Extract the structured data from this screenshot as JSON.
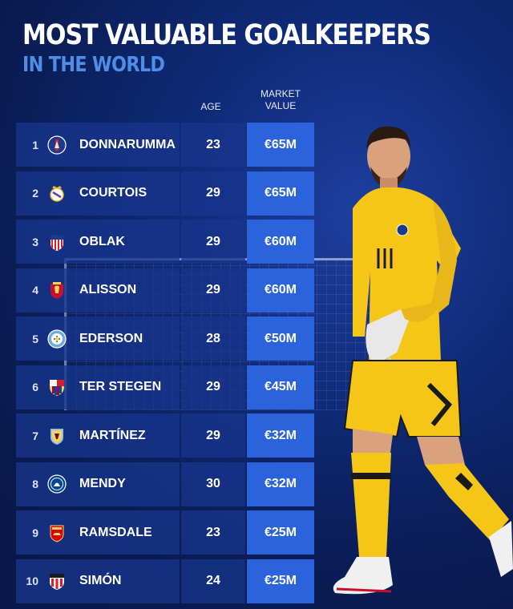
{
  "title": "MOST VALUABLE GOALKEEPERS",
  "subtitle": "IN THE WORLD",
  "columns": {
    "age": "AGE",
    "market_value_line1": "MARKET",
    "market_value_line2": "VALUE"
  },
  "players": [
    {
      "rank": "1",
      "name": "DONNARUMMA",
      "age": "23",
      "value": "€65M",
      "club_icon": "psg-crest-icon"
    },
    {
      "rank": "2",
      "name": "COURTOIS",
      "age": "29",
      "value": "€65M",
      "club_icon": "real-madrid-crest-icon"
    },
    {
      "rank": "3",
      "name": "OBLAK",
      "age": "29",
      "value": "€60M",
      "club_icon": "atletico-madrid-crest-icon"
    },
    {
      "rank": "4",
      "name": "ALISSON",
      "age": "29",
      "value": "€60M",
      "club_icon": "liverpool-crest-icon"
    },
    {
      "rank": "5",
      "name": "EDERSON",
      "age": "28",
      "value": "€50M",
      "club_icon": "man-city-crest-icon"
    },
    {
      "rank": "6",
      "name": "TER STEGEN",
      "age": "29",
      "value": "€45M",
      "club_icon": "barcelona-crest-icon"
    },
    {
      "rank": "7",
      "name": "MARTÍNEZ",
      "age": "29",
      "value": "€32M",
      "club_icon": "aston-villa-crest-icon"
    },
    {
      "rank": "8",
      "name": "MENDY",
      "age": "30",
      "value": "€32M",
      "club_icon": "chelsea-crest-icon"
    },
    {
      "rank": "9",
      "name": "RAMSDALE",
      "age": "23",
      "value": "€25M",
      "club_icon": "arsenal-crest-icon"
    },
    {
      "rank": "10",
      "name": "SIMÓN",
      "age": "24",
      "value": "€25M",
      "club_icon": "athletic-bilbao-crest-icon"
    }
  ],
  "colors": {
    "background": "#0f2a78",
    "accent": "#2a63dc",
    "subtitle": "#4d8fe6",
    "kit": "#f5c518"
  }
}
